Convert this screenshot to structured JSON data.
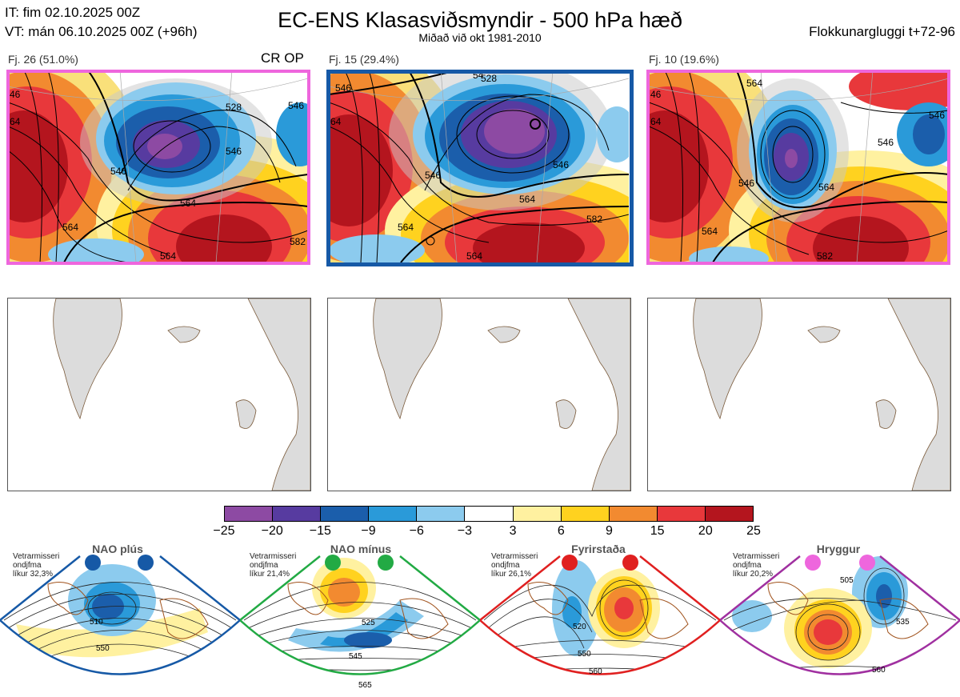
{
  "header": {
    "issue_time": "IT: fim 02.10.2025 00Z",
    "valid_time": "VT: mán 06.10.2025 00Z  (+96h)",
    "title": "EC-ENS Klasasviðsmyndir - 500 hPa hæð",
    "subtitle": "Miðað við okt 1981-2010",
    "cluster_window": "Flokkunargluggi t+72-96"
  },
  "clusters": [
    {
      "label": "Fj. 26 (51.0%)",
      "members": 26,
      "probability_percent": 51.0,
      "tag": "CR OP",
      "frame_color": "#ee66dd",
      "contour_labels": [
        "528",
        "546",
        "564",
        "546",
        "564",
        "582",
        "546",
        "564",
        "46",
        "64"
      ]
    },
    {
      "label": "Fj. 15 (29.4%)",
      "members": 15,
      "probability_percent": 29.4,
      "tag": "",
      "frame_color": "#1659a6",
      "contour_labels": [
        "528",
        "546",
        "564",
        "546",
        "564",
        "582",
        "546",
        "564",
        "54",
        "64"
      ]
    },
    {
      "label": "Fj. 10 (19.6%)",
      "members": 10,
      "probability_percent": 19.6,
      "tag": "",
      "frame_color": "#ee66dd",
      "contour_labels": [
        "546",
        "546",
        "564",
        "564",
        "582",
        "546",
        "564",
        "46",
        "64"
      ]
    }
  ],
  "colorbar": {
    "ticks": [
      "−25",
      "−20",
      "−15",
      "−9",
      "−6",
      "−3",
      "3",
      "6",
      "9",
      "15",
      "20",
      "25"
    ],
    "colors": [
      "#8d4aa3",
      "#573ba0",
      "#1b5eab",
      "#2a9ad9",
      "#8ccbee",
      "#ffffff",
      "#fff1a0",
      "#ffd21f",
      "#f28a30",
      "#e8383b",
      "#b4151e"
    ]
  },
  "regimes": [
    {
      "title": "NAO plús",
      "season_line1": "Vetrarmisseri",
      "season_line2": "ondjfma",
      "likelihood": "líkur 32,3%",
      "color": "#1659a6",
      "contour_labels": [
        "510",
        "550"
      ]
    },
    {
      "title": "NAO mínus",
      "season_line1": "Vetrarmisseri",
      "season_line2": "ondjfma",
      "likelihood": "líkur 21,4%",
      "color": "#22aa44",
      "contour_labels": [
        "525",
        "545",
        "565"
      ]
    },
    {
      "title": "Fyrirstaða",
      "season_line1": "Vetrarmisseri",
      "season_line2": "ondjfma",
      "likelihood": "líkur 26,1%",
      "color": "#e02020",
      "contour_labels": [
        "520",
        "550",
        "560"
      ]
    },
    {
      "title": "Hryggur",
      "season_line1": "Vetrarmisseri",
      "season_line2": "ondjfma",
      "likelihood": "líkur 20,2%",
      "color": "#a030a0",
      "contour_labels": [
        "505",
        "535",
        "560"
      ]
    }
  ]
}
